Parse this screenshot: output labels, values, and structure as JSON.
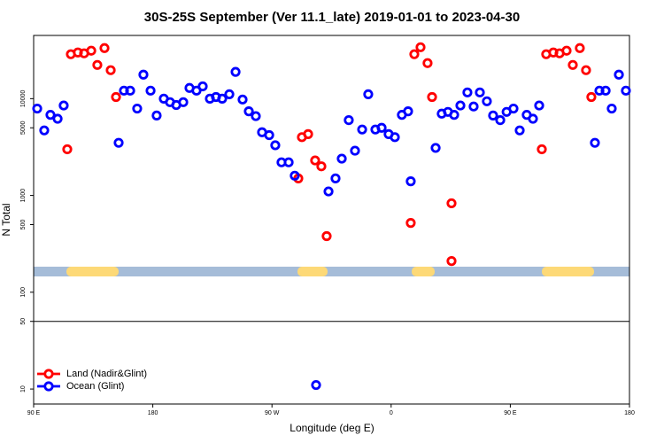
{
  "chart_data": {
    "type": "scatter",
    "title": "30S-25S September (Ver 11.1_late)   2019-01-01 to 2023-04-30",
    "xlabel": "Longitude (deg E)",
    "ylabel": "N Total",
    "log_y": true,
    "legend": "lower left",
    "hline": 50,
    "xlim": [
      90,
      540
    ],
    "ylim": [
      7,
      45000
    ],
    "xticks": [
      {
        "value": 90,
        "label": "90 E"
      },
      180,
      {
        "value": 270,
        "label": "90 W"
      },
      {
        "value": 360,
        "label": "0"
      },
      {
        "value": 450,
        "label": "90 E"
      },
      {
        "value": 540,
        "label": "180"
      }
    ],
    "yticks": [
      10,
      50,
      100,
      500,
      1000,
      5000,
      10000
    ],
    "series": [
      {
        "name": "Land (Nadir&Glint)",
        "color": "#ff0000",
        "x": [
          115.4,
          118.1,
          123.4,
          128.1,
          133.5,
          138.1,
          143.5,
          148.2,
          152.2,
          289.9,
          292.6,
          297.3,
          302.6,
          307.3,
          311.3,
          374.8,
          377.5,
          382.2,
          387.5,
          390.9,
          405.6,
          405.6,
          473.8,
          477.1,
          482.5,
          487.2,
          492.5,
          497.2,
          502.5,
          507.2,
          511.2
        ],
        "values": [
          3000,
          28800,
          30000,
          29400,
          31300,
          22300,
          33300,
          19700,
          10400,
          1500,
          4000,
          4300,
          2300,
          2000,
          380,
          520,
          28800,
          34000,
          23300,
          10400,
          830,
          210,
          3000,
          28800,
          30000,
          29400,
          31300,
          22300,
          33300,
          19700,
          10400
        ]
      },
      {
        "name": "Ocean (Glint)",
        "color": "#0000ff",
        "x": [
          92.7,
          98.0,
          102.7,
          108.1,
          112.7,
          154.2,
          158.2,
          162.9,
          168.2,
          172.9,
          178.3,
          182.9,
          188.3,
          193.0,
          197.7,
          203.0,
          207.7,
          213.0,
          217.7,
          223.1,
          227.7,
          232.4,
          237.8,
          242.5,
          247.8,
          252.5,
          257.8,
          262.5,
          267.9,
          272.5,
          277.2,
          282.6,
          287.2,
          303.3,
          312.7,
          318.0,
          322.7,
          328.0,
          332.7,
          338.1,
          342.7,
          348.1,
          352.8,
          358.1,
          362.8,
          368.1,
          372.8,
          374.8,
          393.6,
          398.2,
          402.9,
          407.6,
          412.3,
          417.6,
          422.3,
          427.0,
          432.3,
          437.0,
          442.4,
          447.2,
          452.4,
          457.1,
          462.4,
          467.1,
          471.8,
          513.9,
          517.3,
          522.0,
          526.6,
          532.0,
          537.3
        ],
        "values": [
          7900,
          4700,
          6800,
          6200,
          8500,
          3500,
          12100,
          12100,
          7900,
          17700,
          12100,
          6700,
          10000,
          9200,
          8600,
          9200,
          12900,
          12100,
          13400,
          10000,
          10400,
          10000,
          11100,
          18900,
          9800,
          7400,
          6600,
          4500,
          4200,
          3300,
          2200,
          2200,
          1600,
          11,
          1100,
          1500,
          2400,
          6000,
          2900,
          4800,
          11100,
          4800,
          5000,
          4300,
          4000,
          6800,
          7400,
          1400,
          3100,
          7000,
          7300,
          6800,
          8500,
          11600,
          8300,
          11600,
          9400,
          6700,
          6000,
          7300,
          7900,
          4700,
          6800,
          6200,
          8500,
          3500,
          12100,
          12100,
          7900,
          17700,
          12100
        ]
      }
    ]
  }
}
